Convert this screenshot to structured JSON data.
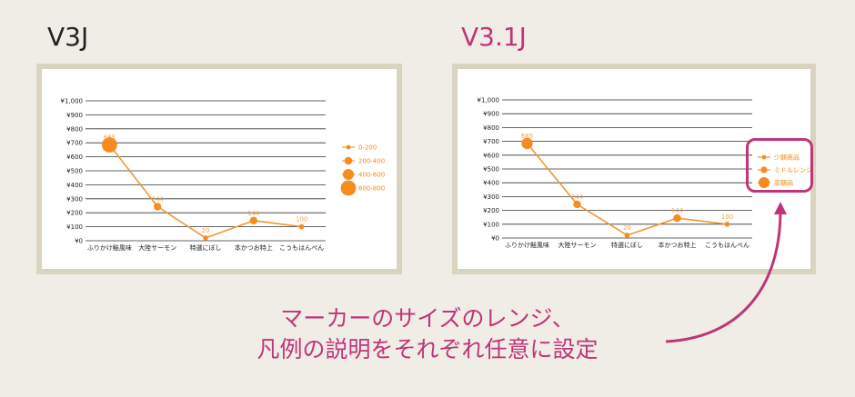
{
  "colors": {
    "accent": "#c0357a",
    "marker": "#f68b1f",
    "line": "#f29630",
    "grid": "#333333",
    "frame": "#d8d4c0"
  },
  "left": {
    "title": "V3J"
  },
  "right": {
    "title": "V3.1J"
  },
  "caption": {
    "line1": "マーカーのサイズのレンジ、",
    "line2": "凡例の説明をそれぞれ任意に設定"
  },
  "chart_data": [
    {
      "type": "scatter",
      "categories": [
        "ふりかけ鮭風味",
        "大陸サーモン",
        "特選にぼし",
        "本かつお特上",
        "こうもはんぺん"
      ],
      "values": [
        685,
        244,
        20,
        144,
        100
      ],
      "y_ticks": [
        "¥0",
        "¥100",
        "¥200",
        "¥300",
        "¥400",
        "¥500",
        "¥600",
        "¥700",
        "¥800",
        "¥900",
        "¥1,000"
      ],
      "ylim": [
        0,
        1000
      ],
      "marker_sizes": [
        4,
        2,
        1,
        2,
        1
      ],
      "legend": {
        "placement": "right",
        "entries": [
          "0-200",
          "200-400",
          "400-600",
          "600-800"
        ]
      }
    },
    {
      "type": "scatter",
      "categories": [
        "ふりかけ鮭風味",
        "大陸サーモン",
        "特選にぼし",
        "本かつお特上",
        "こうもはんぺん"
      ],
      "values": [
        685,
        244,
        20,
        144,
        100
      ],
      "y_ticks": [
        "¥0",
        "¥100",
        "¥200",
        "¥300",
        "¥400",
        "¥500",
        "¥600",
        "¥700",
        "¥800",
        "¥900",
        "¥1,000"
      ],
      "ylim": [
        0,
        1000
      ],
      "marker_sizes": [
        3,
        2,
        1,
        2,
        1
      ],
      "legend": {
        "placement": "right",
        "entries": [
          "少額商品",
          "ミドルレンジ",
          "高額品"
        ]
      }
    }
  ]
}
